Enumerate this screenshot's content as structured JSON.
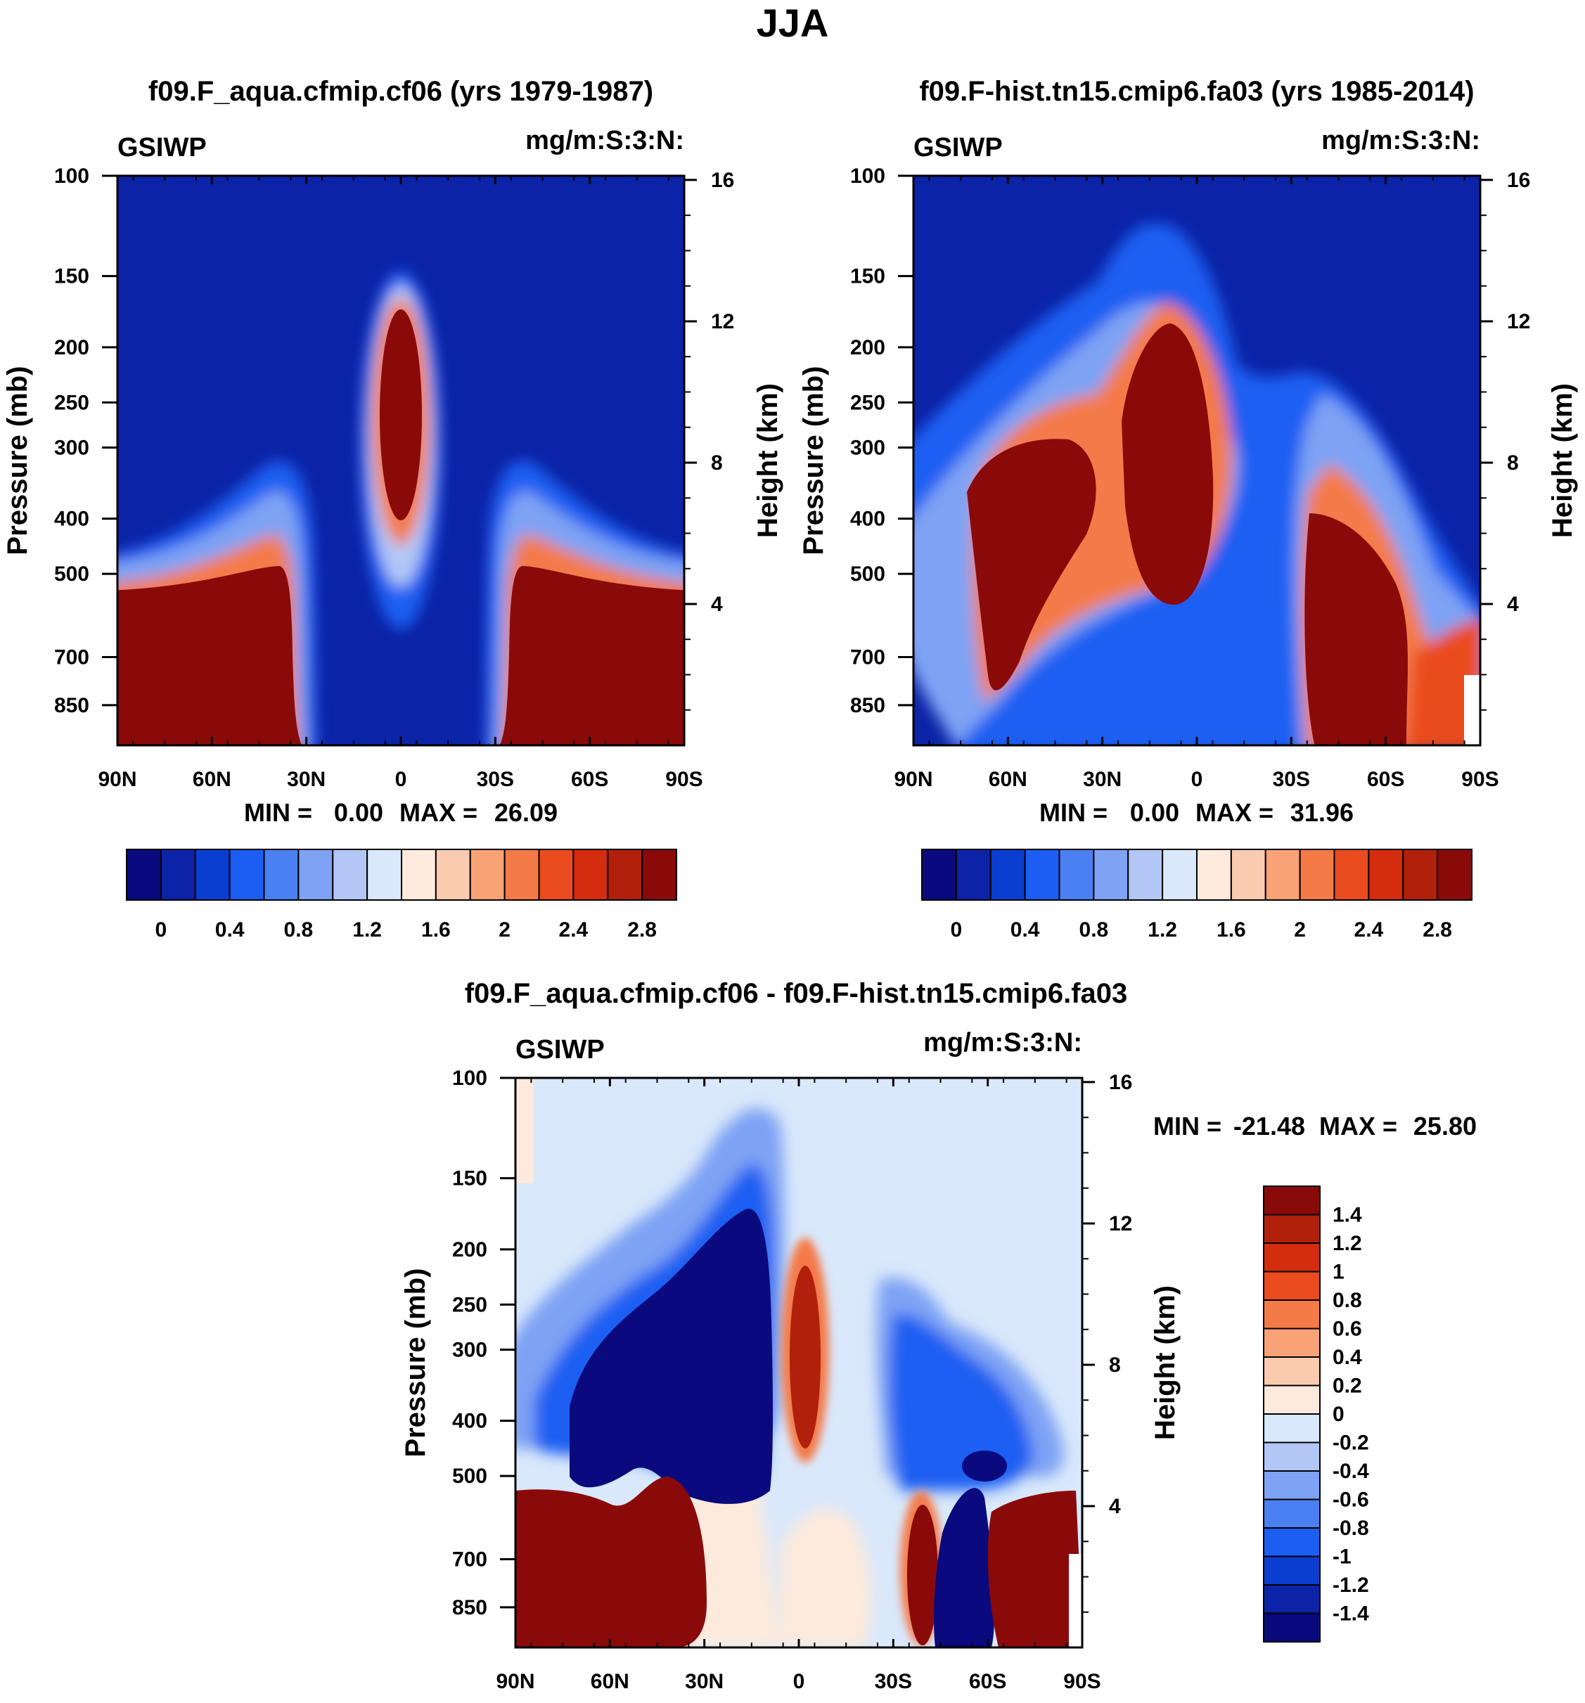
{
  "page": {
    "title": "JJA"
  },
  "colors": {
    "abs_palette": [
      "#0a0a7e",
      "#0b23a6",
      "#0a3ed0",
      "#1d5ef2",
      "#4a80f2",
      "#7ea3f4",
      "#b2c7f6",
      "#d9e8fb",
      "#fdeadc",
      "#fbcbb0",
      "#f8a276",
      "#f47a48",
      "#ea4b1f",
      "#d42c0e",
      "#b0200b",
      "#8a0a0a"
    ],
    "diff_palette": [
      "#0a0a7e",
      "#0b23a6",
      "#0a3ed0",
      "#1d5ef2",
      "#4a80f2",
      "#7ea3f4",
      "#b2c7f6",
      "#d9e8fb",
      "#fdeadc",
      "#fbcbb0",
      "#f8a276",
      "#f47a48",
      "#ea4b1f",
      "#d42c0e",
      "#b0200b",
      "#8a0a0a"
    ]
  },
  "chart_data": [
    {
      "type": "heatmap",
      "title": "f09.F_aqua.cfmip.cf06 (yrs 1979-1987)",
      "left_label": "GSIWP",
      "right_label": "mg/m:S:3:N:",
      "ylabel": "Pressure (mb)",
      "y2label": "Height (km)",
      "x_ticks": [
        "90N",
        "60N",
        "30N",
        "0",
        "30S",
        "60S",
        "90S"
      ],
      "y_ticks": [
        "100",
        "150",
        "200",
        "250",
        "300",
        "400",
        "500",
        "700",
        "850"
      ],
      "y2_ticks": [
        "16",
        "12",
        "8",
        "4"
      ],
      "ylim": [
        100,
        1000
      ],
      "stats": {
        "min_label": "MIN =",
        "min": "0.00",
        "max_label": "MAX =",
        "max": "26.09"
      },
      "colorbar_labels": [
        "0",
        "0.4",
        "0.8",
        "1.2",
        "1.6",
        "2",
        "2.4",
        "2.8"
      ],
      "levels": [
        0,
        0.2,
        0.4,
        0.6,
        0.8,
        1.0,
        1.2,
        1.4,
        1.6,
        1.8,
        2.0,
        2.2,
        2.4,
        2.6,
        2.8
      ]
    },
    {
      "type": "heatmap",
      "title": "f09.F-hist.tn15.cmip6.fa03 (yrs 1985-2014)",
      "left_label": "GSIWP",
      "right_label": "mg/m:S:3:N:",
      "ylabel": "Pressure (mb)",
      "y2label": "Height (km)",
      "x_ticks": [
        "90N",
        "60N",
        "30N",
        "0",
        "30S",
        "60S",
        "90S"
      ],
      "y_ticks": [
        "100",
        "150",
        "200",
        "250",
        "300",
        "400",
        "500",
        "700",
        "850"
      ],
      "y2_ticks": [
        "16",
        "12",
        "8",
        "4"
      ],
      "ylim": [
        100,
        1000
      ],
      "stats": {
        "min_label": "MIN =",
        "min": "0.00",
        "max_label": "MAX =",
        "max": "31.96"
      },
      "colorbar_labels": [
        "0",
        "0.4",
        "0.8",
        "1.2",
        "1.6",
        "2",
        "2.4",
        "2.8"
      ],
      "levels": [
        0,
        0.2,
        0.4,
        0.6,
        0.8,
        1.0,
        1.2,
        1.4,
        1.6,
        1.8,
        2.0,
        2.2,
        2.4,
        2.6,
        2.8
      ]
    },
    {
      "type": "heatmap",
      "title": "f09.F_aqua.cfmip.cf06 - f09.F-hist.tn15.cmip6.fa03",
      "left_label": "GSIWP",
      "right_label": "mg/m:S:3:N:",
      "ylabel": "Pressure (mb)",
      "y2label": "Height (km)",
      "x_ticks": [
        "90N",
        "60N",
        "30N",
        "0",
        "30S",
        "60S",
        "90S"
      ],
      "y_ticks": [
        "100",
        "150",
        "200",
        "250",
        "300",
        "400",
        "500",
        "700",
        "850"
      ],
      "y2_ticks": [
        "16",
        "12",
        "8",
        "4"
      ],
      "ylim": [
        100,
        1000
      ],
      "stats": {
        "min_label": "MIN =",
        "min": "-21.48",
        "max_label": "MAX =",
        "max": "25.80"
      },
      "colorbar_labels": [
        "1.4",
        "1.2",
        "1",
        "0.8",
        "0.6",
        "0.4",
        "0.2",
        "0",
        "-0.2",
        "-0.4",
        "-0.6",
        "-0.8",
        "-1",
        "-1.2",
        "-1.4"
      ],
      "levels": [
        -1.4,
        -1.2,
        -1.0,
        -0.8,
        -0.6,
        -0.4,
        -0.2,
        0,
        0.2,
        0.4,
        0.6,
        0.8,
        1.0,
        1.2,
        1.4
      ]
    }
  ]
}
